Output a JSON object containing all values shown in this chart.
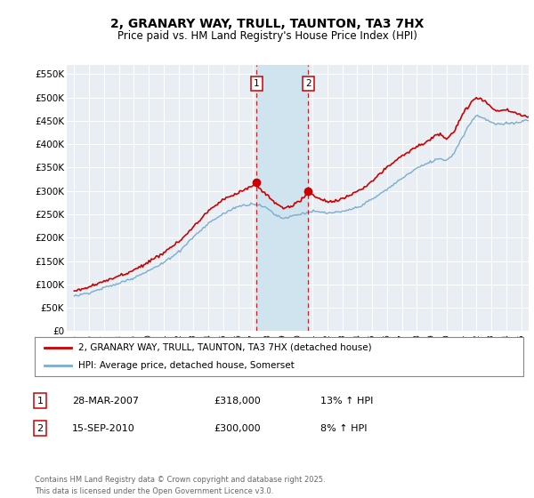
{
  "title": "2, GRANARY WAY, TRULL, TAUNTON, TA3 7HX",
  "subtitle": "Price paid vs. HM Land Registry's House Price Index (HPI)",
  "ylim": [
    0,
    570000
  ],
  "yticks": [
    0,
    50000,
    100000,
    150000,
    200000,
    250000,
    300000,
    350000,
    400000,
    450000,
    500000,
    550000
  ],
  "ytick_labels": [
    "£0",
    "£50K",
    "£100K",
    "£150K",
    "£200K",
    "£250K",
    "£300K",
    "£350K",
    "£400K",
    "£450K",
    "£500K",
    "£550K"
  ],
  "background_color": "#ffffff",
  "plot_bg_color": "#e8eef4",
  "grid_color": "#ffffff",
  "hpi_color": "#7aadcf",
  "price_color": "#cc0000",
  "sale1_x": 2007.24,
  "sale1_y": 318000,
  "sale1_label": "1",
  "sale2_x": 2010.71,
  "sale2_y": 300000,
  "sale2_label": "2",
  "sale1_date": "28-MAR-2007",
  "sale1_price": "£318,000",
  "sale1_hpi": "13% ↑ HPI",
  "sale2_date": "15-SEP-2010",
  "sale2_price": "£300,000",
  "sale2_hpi": "8% ↑ HPI",
  "legend_line1": "2, GRANARY WAY, TRULL, TAUNTON, TA3 7HX (detached house)",
  "legend_line2": "HPI: Average price, detached house, Somerset",
  "footer": "Contains HM Land Registry data © Crown copyright and database right 2025.\nThis data is licensed under the Open Government Licence v3.0.",
  "xlim_start": 1994.5,
  "xlim_end": 2025.5,
  "span_color": "#d0e4f0",
  "dot_color": "#cc0000"
}
